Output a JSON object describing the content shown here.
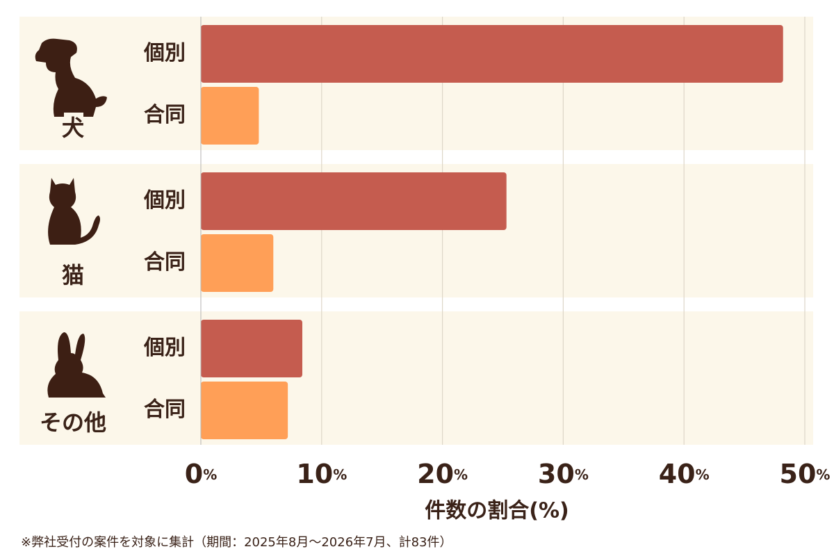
{
  "chart_data": {
    "type": "bar",
    "categories": [
      "犬",
      "猫",
      "その他"
    ],
    "series": [
      {
        "name": "個別",
        "color": "#c55c4f",
        "values": [
          48.2,
          25.3,
          8.4
        ]
      },
      {
        "name": "合同",
        "color": "#ff9f57",
        "values": [
          4.8,
          6.0,
          7.2
        ]
      }
    ],
    "xlim": [
      0,
      50
    ],
    "xticks": [
      {
        "value": 0,
        "label": "0%"
      },
      {
        "value": 10,
        "label": "10%"
      },
      {
        "value": 20,
        "label": "20%"
      },
      {
        "value": 30,
        "label": "30%"
      },
      {
        "value": 40,
        "label": "40%"
      },
      {
        "value": 50,
        "label": "50%"
      }
    ],
    "x_label": "件数の割合(%)",
    "footnote": "※弊社受付の案件を対象に集計（期間：2025年8月〜2026年7月、計83件）",
    "grid": true
  }
}
